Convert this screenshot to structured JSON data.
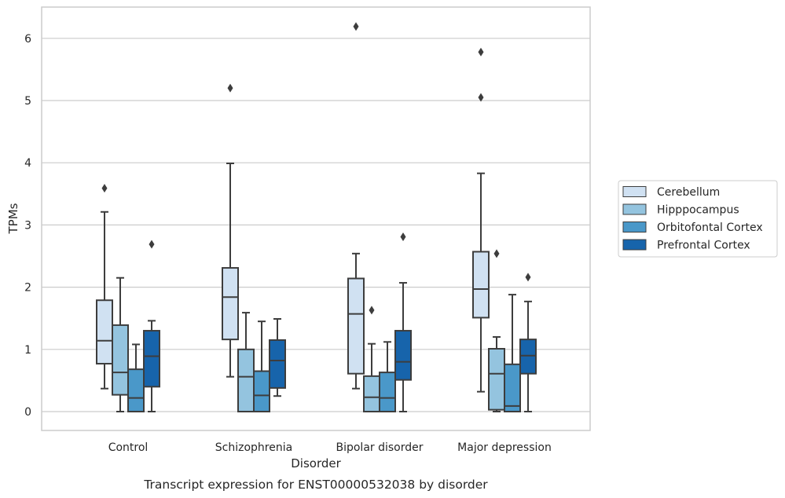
{
  "chart_data": {
    "type": "boxplot",
    "caption": "Transcript expression for ENST00000532038 by disorder",
    "xlabel": "Disorder",
    "ylabel": "TPMs",
    "ylim": [
      -0.3,
      6.5
    ],
    "yticks": [
      "0",
      "1",
      "2",
      "3",
      "4",
      "5",
      "6"
    ],
    "grid": "horizontal",
    "legend_position": "right",
    "categories": [
      "Control",
      "Schizophrenia",
      "Bipolar disorder",
      "Major depression"
    ],
    "series": [
      {
        "name": "Cerebellum",
        "color": "#d0e1f2",
        "boxes": [
          {
            "whislo": 0.37,
            "q1": 0.77,
            "med": 1.14,
            "q3": 1.79,
            "whishi": 3.21,
            "fliers": [
              3.59
            ]
          },
          {
            "whislo": 0.56,
            "q1": 1.16,
            "med": 1.84,
            "q3": 2.31,
            "whishi": 3.99,
            "fliers": [
              5.2
            ]
          },
          {
            "whislo": 0.37,
            "q1": 0.61,
            "med": 1.57,
            "q3": 2.14,
            "whishi": 2.54,
            "fliers": [
              6.19
            ]
          },
          {
            "whislo": 0.32,
            "q1": 1.51,
            "med": 1.97,
            "q3": 2.57,
            "whishi": 3.83,
            "fliers": [
              5.05,
              5.78
            ]
          }
        ]
      },
      {
        "name": "Hipppocampus",
        "color": "#94c4df",
        "boxes": [
          {
            "whislo": 0.0,
            "q1": 0.27,
            "med": 0.63,
            "q3": 1.39,
            "whishi": 2.15,
            "fliers": []
          },
          {
            "whislo": 0.0,
            "q1": 0.0,
            "med": 0.56,
            "q3": 1.0,
            "whishi": 1.59,
            "fliers": []
          },
          {
            "whislo": 0.0,
            "q1": 0.0,
            "med": 0.23,
            "q3": 0.57,
            "whishi": 1.09,
            "fliers": [
              1.63
            ]
          },
          {
            "whislo": 0.0,
            "q1": 0.03,
            "med": 0.61,
            "q3": 1.01,
            "whishi": 1.2,
            "fliers": [
              2.54
            ]
          }
        ]
      },
      {
        "name": "Orbitofontal Cortex",
        "color": "#4a98c9",
        "boxes": [
          {
            "whislo": 0.0,
            "q1": 0.0,
            "med": 0.22,
            "q3": 0.68,
            "whishi": 1.08,
            "fliers": []
          },
          {
            "whislo": 0.0,
            "q1": 0.0,
            "med": 0.26,
            "q3": 0.65,
            "whishi": 1.45,
            "fliers": []
          },
          {
            "whislo": 0.0,
            "q1": 0.0,
            "med": 0.22,
            "q3": 0.63,
            "whishi": 1.12,
            "fliers": []
          },
          {
            "whislo": 0.0,
            "q1": 0.0,
            "med": 0.09,
            "q3": 0.76,
            "whishi": 1.88,
            "fliers": []
          }
        ]
      },
      {
        "name": "Prefrontal Cortex",
        "color": "#1764ab",
        "boxes": [
          {
            "whislo": 0.0,
            "q1": 0.4,
            "med": 0.89,
            "q3": 1.3,
            "whishi": 1.46,
            "fliers": [
              2.69
            ]
          },
          {
            "whislo": 0.25,
            "q1": 0.38,
            "med": 0.82,
            "q3": 1.15,
            "whishi": 1.49,
            "fliers": []
          },
          {
            "whislo": 0.0,
            "q1": 0.51,
            "med": 0.8,
            "q3": 1.3,
            "whishi": 2.07,
            "fliers": [
              2.81
            ]
          },
          {
            "whislo": 0.0,
            "q1": 0.61,
            "med": 0.9,
            "q3": 1.16,
            "whishi": 1.77,
            "fliers": [
              2.16
            ]
          }
        ]
      }
    ],
    "colors": {
      "grid": "#cccccc",
      "frame": "#cccccc",
      "box_line": "#3d3d3d",
      "text": "#262626"
    }
  }
}
